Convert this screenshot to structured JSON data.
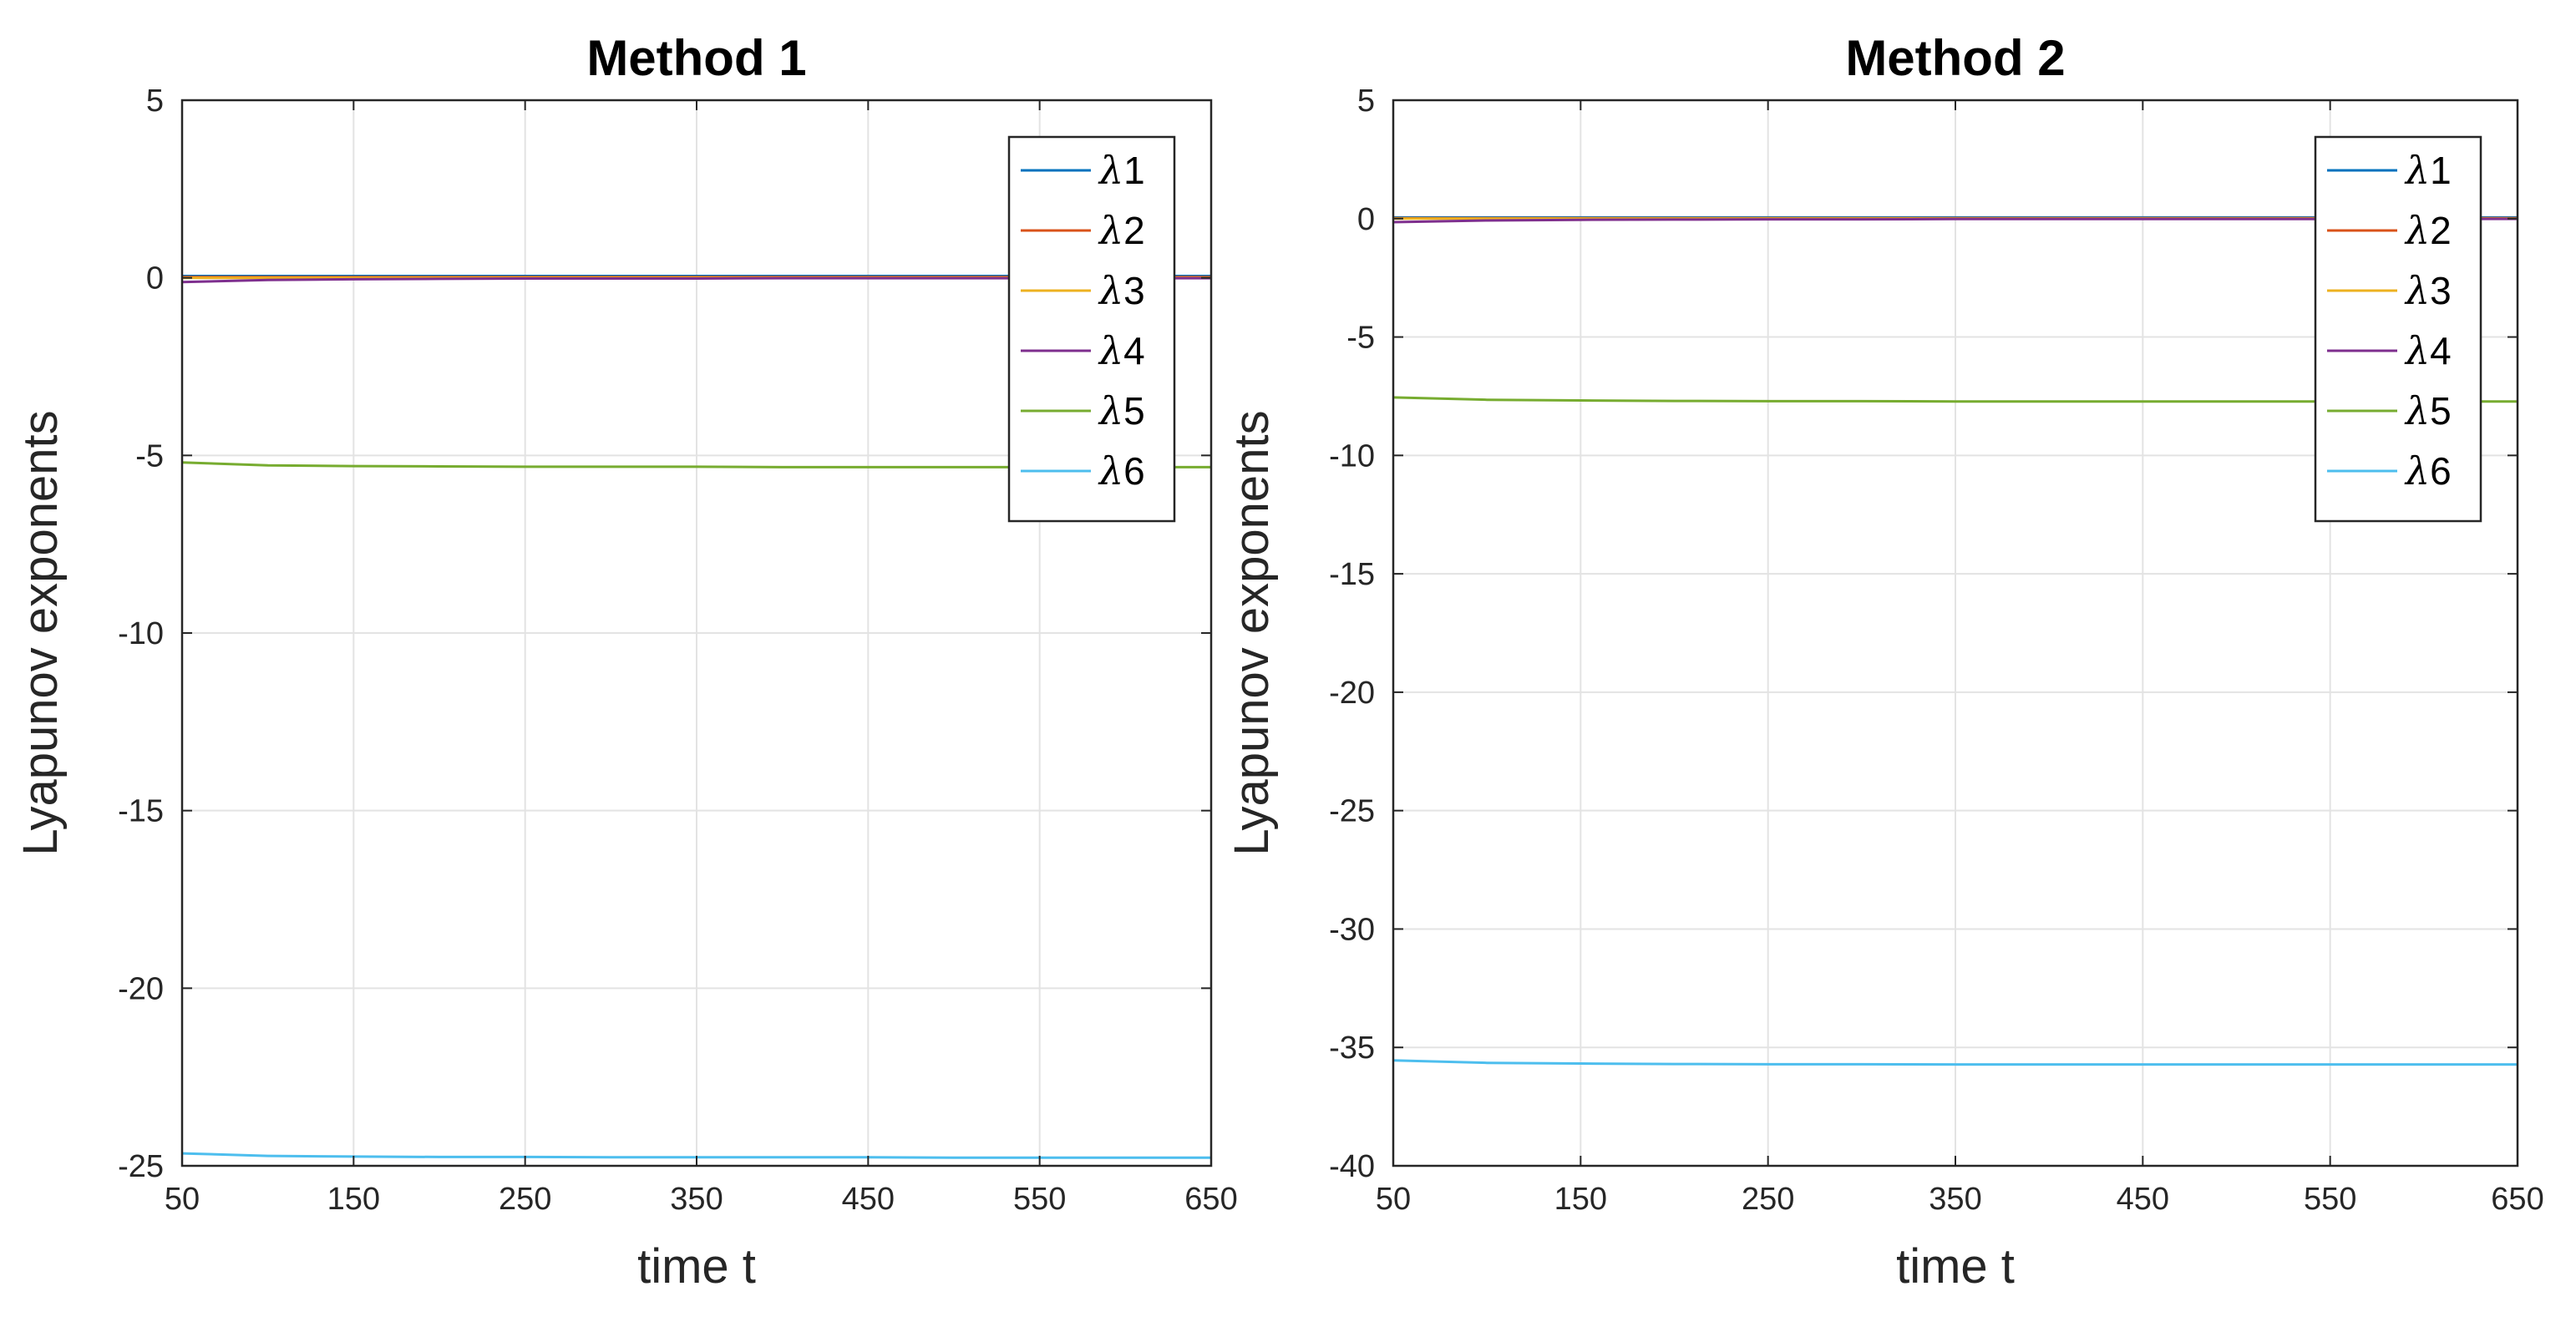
{
  "chart_data": [
    {
      "type": "line",
      "title": "Method 1",
      "xlabel": "time t",
      "ylabel": "Lyapunov exponents",
      "xlim": [
        50,
        650
      ],
      "ylim": [
        -25,
        5
      ],
      "xticks": [
        50,
        150,
        250,
        350,
        450,
        550,
        650
      ],
      "yticks": [
        5,
        0,
        -5,
        -10,
        -15,
        -20,
        -25
      ],
      "grid": true,
      "legend_position": "top-right",
      "x": [
        50,
        100,
        150,
        200,
        250,
        300,
        350,
        400,
        450,
        500,
        550,
        600,
        650
      ],
      "series": [
        {
          "name": "λ1",
          "color": "#0072BD",
          "values": [
            0.05,
            0.05,
            0.05,
            0.05,
            0.05,
            0.05,
            0.05,
            0.05,
            0.05,
            0.05,
            0.05,
            0.05,
            0.05
          ]
        },
        {
          "name": "λ2",
          "color": "#D95319",
          "values": [
            0.02,
            0.02,
            0.02,
            0.02,
            0.02,
            0.02,
            0.02,
            0.02,
            0.02,
            0.02,
            0.02,
            0.02,
            0.02
          ]
        },
        {
          "name": "λ3",
          "color": "#EDB120",
          "values": [
            0.0,
            0.0,
            0.0,
            0.0,
            0.0,
            0.0,
            0.0,
            0.0,
            0.0,
            0.0,
            0.0,
            0.0,
            0.0
          ]
        },
        {
          "name": "λ4",
          "color": "#7E2F8E",
          "values": [
            -0.12,
            -0.06,
            -0.04,
            -0.03,
            -0.02,
            -0.02,
            -0.02,
            -0.01,
            -0.01,
            -0.01,
            -0.01,
            -0.01,
            -0.01
          ]
        },
        {
          "name": "λ5",
          "color": "#77AC30",
          "values": [
            -5.2,
            -5.28,
            -5.3,
            -5.31,
            -5.32,
            -5.32,
            -5.32,
            -5.33,
            -5.33,
            -5.33,
            -5.33,
            -5.33,
            -5.33
          ]
        },
        {
          "name": "λ6",
          "color": "#4DBEEE",
          "values": [
            -24.65,
            -24.72,
            -24.74,
            -24.75,
            -24.75,
            -24.76,
            -24.76,
            -24.76,
            -24.76,
            -24.77,
            -24.77,
            -24.77,
            -24.77
          ]
        }
      ]
    },
    {
      "type": "line",
      "title": "Method 2",
      "xlabel": "time t",
      "ylabel": "Lyapunov exponents",
      "xlim": [
        50,
        650
      ],
      "ylim": [
        -40,
        5
      ],
      "xticks": [
        50,
        150,
        250,
        350,
        450,
        550,
        650
      ],
      "yticks": [
        5,
        0,
        -5,
        -10,
        -15,
        -20,
        -25,
        -30,
        -35,
        -40
      ],
      "grid": true,
      "legend_position": "top-right",
      "x": [
        50,
        100,
        150,
        200,
        250,
        300,
        350,
        400,
        450,
        500,
        550,
        600,
        650
      ],
      "series": [
        {
          "name": "λ1",
          "color": "#0072BD",
          "values": [
            0.05,
            0.05,
            0.05,
            0.05,
            0.05,
            0.05,
            0.05,
            0.05,
            0.05,
            0.05,
            0.05,
            0.05,
            0.05
          ]
        },
        {
          "name": "λ2",
          "color": "#D95319",
          "values": [
            0.02,
            0.02,
            0.02,
            0.02,
            0.02,
            0.02,
            0.02,
            0.02,
            0.02,
            0.02,
            0.02,
            0.02,
            0.02
          ]
        },
        {
          "name": "λ3",
          "color": "#EDB120",
          "values": [
            0.0,
            0.0,
            0.0,
            0.0,
            0.0,
            0.0,
            0.0,
            0.0,
            0.0,
            0.0,
            0.0,
            0.0,
            0.0
          ]
        },
        {
          "name": "λ4",
          "color": "#7E2F8E",
          "values": [
            -0.15,
            -0.08,
            -0.05,
            -0.04,
            -0.03,
            -0.03,
            -0.02,
            -0.02,
            -0.02,
            -0.02,
            -0.02,
            -0.01,
            -0.01
          ]
        },
        {
          "name": "λ5",
          "color": "#77AC30",
          "values": [
            -7.55,
            -7.65,
            -7.68,
            -7.7,
            -7.71,
            -7.71,
            -7.72,
            -7.72,
            -7.72,
            -7.72,
            -7.72,
            -7.72,
            -7.72
          ]
        },
        {
          "name": "λ6",
          "color": "#4DBEEE",
          "values": [
            -35.55,
            -35.65,
            -35.68,
            -35.7,
            -35.71,
            -35.71,
            -35.72,
            -35.72,
            -35.72,
            -35.72,
            -35.72,
            -35.72,
            -35.72
          ]
        }
      ]
    }
  ]
}
